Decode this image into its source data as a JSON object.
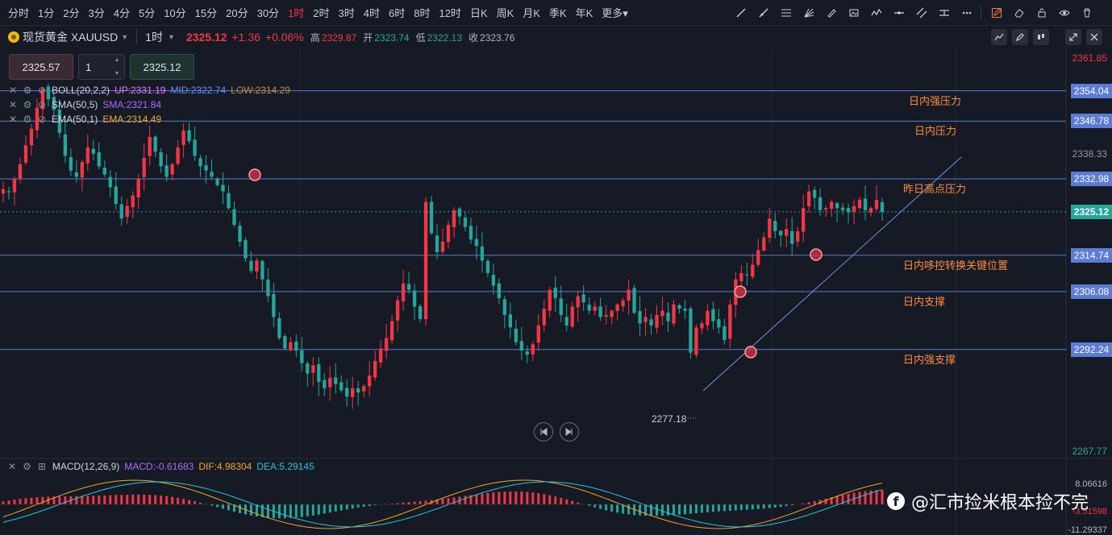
{
  "timeframes": [
    {
      "label": "分时",
      "active": false
    },
    {
      "label": "1分",
      "active": false
    },
    {
      "label": "2分",
      "active": false
    },
    {
      "label": "3分",
      "active": false
    },
    {
      "label": "4分",
      "active": false
    },
    {
      "label": "5分",
      "active": false
    },
    {
      "label": "10分",
      "active": false
    },
    {
      "label": "15分",
      "active": false
    },
    {
      "label": "20分",
      "active": false
    },
    {
      "label": "30分",
      "active": false
    },
    {
      "label": "1时",
      "active": true
    },
    {
      "label": "2时",
      "active": false
    },
    {
      "label": "3时",
      "active": false
    },
    {
      "label": "4时",
      "active": false
    },
    {
      "label": "6时",
      "active": false
    },
    {
      "label": "8时",
      "active": false
    },
    {
      "label": "12时",
      "active": false
    },
    {
      "label": "日K",
      "active": false
    },
    {
      "label": "周K",
      "active": false
    },
    {
      "label": "月K",
      "active": false
    },
    {
      "label": "季K",
      "active": false
    },
    {
      "label": "年K",
      "active": false
    },
    {
      "label": "更多▾",
      "active": false
    }
  ],
  "drawing_tools": [
    "trend-line-icon",
    "ray-icon",
    "fibonacci-icon",
    "fan-icon",
    "brush-icon",
    "image-icon",
    "wave-icon",
    "horizontal-line-icon",
    "parallel-channel-icon",
    "price-range-icon",
    "more-icon",
    "edit-icon",
    "eraser-icon",
    "lock-icon",
    "eye-icon",
    "trash-icon"
  ],
  "symbol": {
    "name": "现货黄金 XAUUSD",
    "timeframe": "1时",
    "price": "2325.12",
    "change": "+1.36",
    "change_pct": "+0.06%",
    "high_label": "高",
    "high": "2329.87",
    "open_label": "开",
    "open": "2323.74",
    "low_label": "低",
    "low": "2322.13",
    "close_label": "收",
    "close": "2323.76"
  },
  "order": {
    "sell_price": "2325.57",
    "quantity": "1",
    "buy_price": "2325.12"
  },
  "indicators": [
    {
      "name": "BOLL(20,2,2)",
      "values": [
        {
          "text": "UP:2331.19",
          "color": "#e37aff"
        },
        {
          "text": "MID:2322.74",
          "color": "#6b8cff"
        },
        {
          "text": "LOW:2314.29",
          "color": "#c58a3a"
        }
      ]
    },
    {
      "name": "SMA(50,5)",
      "values": [
        {
          "text": "SMA:2321.84",
          "color": "#b06af7"
        }
      ]
    },
    {
      "name": "EMA(50,1)",
      "values": [
        {
          "text": "EMA:2314.49",
          "color": "#f5a623"
        }
      ]
    }
  ],
  "colors": {
    "up": "#f23645",
    "down": "#26a69a",
    "hline": "#5b7bd5",
    "annotation": "#ff8a3d"
  },
  "chart_data": {
    "type": "candlestick",
    "y_axis_ticks": [
      "2361.85",
      "2338.33",
      "2267.77"
    ],
    "ylim": [
      2267.77,
      2361.85
    ],
    "last_price": "2325.12",
    "price_levels": [
      {
        "price": 2354.04,
        "label": "2354.04",
        "annotation": "日内强压力"
      },
      {
        "price": 2346.78,
        "label": "2346.78",
        "annotation": "日内压力"
      },
      {
        "price": 2332.98,
        "label": "2332.98",
        "annotation": "昨日高点压力"
      },
      {
        "price": 2314.74,
        "label": "2314.74",
        "annotation": "日内哆控转换关键位置"
      },
      {
        "price": 2306.08,
        "label": "2306.08",
        "annotation": "日内支撑"
      },
      {
        "price": 2292.24,
        "label": "2292.24",
        "annotation": "日内强支撑"
      }
    ],
    "low_marker": {
      "price": 2277.18,
      "label": "2277.18"
    },
    "candles_close": [
      2330.5,
      2329.8,
      2333.0,
      2336.5,
      2341.0,
      2345.0,
      2350.0,
      2354.5,
      2352.0,
      2349.5,
      2344.0,
      2338.5,
      2335.0,
      2333.5,
      2337.0,
      2340.5,
      2339.0,
      2336.0,
      2334.0,
      2331.0,
      2327.0,
      2323.5,
      2326.5,
      2329.0,
      2333.0,
      2338.0,
      2343.0,
      2339.5,
      2336.0,
      2333.5,
      2336.5,
      2340.5,
      2344.5,
      2342.0,
      2338.5,
      2336.0,
      2335.0,
      2333.5,
      2331.5,
      2330.0,
      2326.0,
      2322.0,
      2318.0,
      2314.0,
      2311.0,
      2313.5,
      2309.0,
      2305.0,
      2300.0,
      2295.0,
      2292.5,
      2294.0,
      2292.0,
      2289.0,
      2286.5,
      2288.5,
      2284.5,
      2283.0,
      2285.5,
      2284.0,
      2282.5,
      2281.0,
      2283.0,
      2282.0,
      2283.5,
      2286.0,
      2289.5,
      2292.5,
      2295.0,
      2299.0,
      2304.0,
      2308.0,
      2306.5,
      2302.5,
      2299.5,
      2327.5,
      2320.0,
      2315.5,
      2318.0,
      2322.0,
      2325.5,
      2324.0,
      2321.5,
      2318.5,
      2317.0,
      2313.5,
      2310.5,
      2307.5,
      2304.5,
      2300.5,
      2297.5,
      2294.0,
      2292.0,
      2291.0,
      2293.5,
      2298.0,
      2302.0,
      2306.5,
      2304.5,
      2300.5,
      2298.0,
      2302.5,
      2305.0,
      2303.5,
      2301.5,
      2302.5,
      2300.0,
      2300.5,
      2301.5,
      2303.0,
      2304.0,
      2306.5,
      2301.0,
      2298.5,
      2300.0,
      2298.0,
      2300.5,
      2301.5,
      2299.0,
      2303.0,
      2302.0,
      2301.5,
      2291.5,
      2297.5,
      2298.5,
      2301.5,
      2299.0,
      2297.5,
      2294.5,
      2303.0,
      2309.0,
      2310.5,
      2310.0,
      2312.5,
      2316.0,
      2319.0,
      2323.5,
      2320.5,
      2319.5,
      2321.0,
      2317.5,
      2320.5,
      2326.0,
      2330.0,
      2328.5,
      2325.5,
      2326.0,
      2327.5,
      2326.0,
      2325.5,
      2325.0,
      2326.5,
      2328.0,
      2325.5,
      2326.0,
      2328.0,
      2325.12
    ],
    "macd": {
      "label": "MACD(12,26,9)",
      "macd": "MACD:-0.61683",
      "dif": "DIF:4.98304",
      "dea": "DEA:5.29145",
      "ticks": [
        "8.06616",
        "-3.51598",
        "-11.29337"
      ]
    }
  },
  "watermark": "@汇市捡米根本捡不完"
}
